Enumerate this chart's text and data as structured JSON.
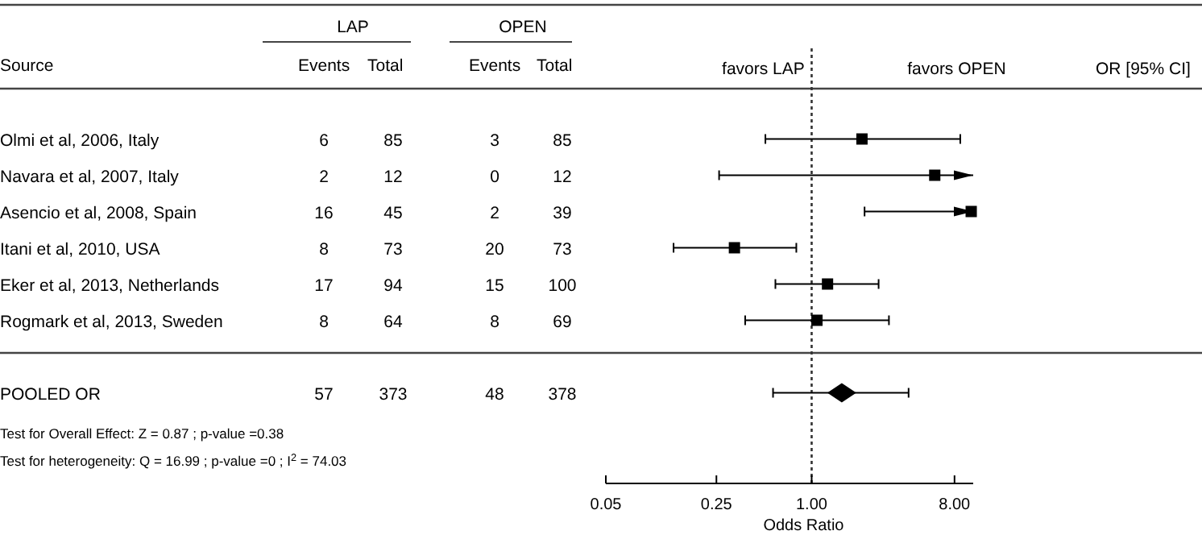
{
  "chart_data": [
    {
      "type": "heatmap",
      "data_labels": true,
      "ylabel": "Source",
      "categories": [
        "Events",
        "Total",
        "Events",
        "Total"
      ],
      "y_categories": [
        "Olmi et al, 2006, Italy",
        "Navara et al, 2007, Italy",
        "Asencio et al, 2008, Spain",
        "Itani et al, 2010, USA",
        "Eker et al, 2013, Netherlands",
        "Rogmark et al, 2013, Sweden",
        "POOLED OR"
      ],
      "cells": [
        [
          6,
          85,
          3,
          85
        ],
        [
          2,
          12,
          0,
          12
        ],
        [
          16,
          45,
          2,
          39
        ],
        [
          8,
          73,
          20,
          73
        ],
        [
          17,
          94,
          15,
          100
        ],
        [
          8,
          64,
          8,
          69
        ],
        [
          57,
          373,
          48,
          378
        ]
      ],
      "annotations": [
        "LAP",
        "OPEN",
        "Test for Overall Effect:  Z =  0.87 ; p-value =0.38",
        "Test for heterogeneity: Q = 16.99 ; p-value =0 ;  I$^{2}$ =  74.03"
      ]
    },
    {
      "type": "scatter",
      "orientation": "horizontal",
      "categories": [
        null,
        null,
        null,
        null,
        null,
        null,
        null,
        null,
        null,
        null,
        null,
        null
      ],
      "tick_labels": "x",
      "xlabel": "Odds Ratio",
      "log": "x",
      "xlim": [
        0.05,
        10.5
      ],
      "xticks": [
        0.05,
        0.25,
        {
          "value": 1,
          "label": "1.00"
        },
        {
          "value": 8,
          "label": "8.00"
        }
      ],
      "series": [
        {
          "marker": "square",
          "color": "#000000",
          "values": [
            null,
            null,
            2.08,
            6.0,
            10.2,
            0.325,
            1.26,
            1.08,
            null,
            null,
            null,
            null
          ],
          "errors": [
            null,
            null,
            [
              0.51,
              8.7
            ],
            [
              0.26,
              10.5
            ],
            [
              2.16,
              10.5
            ],
            [
              0.134,
              0.8
            ],
            [
              0.59,
              2.65
            ],
            [
              0.38,
              3.08
            ],
            null,
            null,
            null,
            null
          ]
        },
        {
          "marker": "diamond",
          "color": "#000000",
          "values": [
            null,
            null,
            null,
            null,
            null,
            null,
            null,
            null,
            null,
            1.55,
            null,
            null
          ],
          "errors": [
            null,
            null,
            null,
            null,
            null,
            null,
            null,
            null,
            null,
            [
              0.57,
              4.1
            ],
            null,
            null
          ]
        }
      ],
      "ref_lines": [
        {
          "axis": "x",
          "value": 1,
          "line_style": "dotted"
        }
      ],
      "annotations": [
        "favors LAP",
        "favors OPEN",
        "OR [95% CI]"
      ]
    }
  ]
}
